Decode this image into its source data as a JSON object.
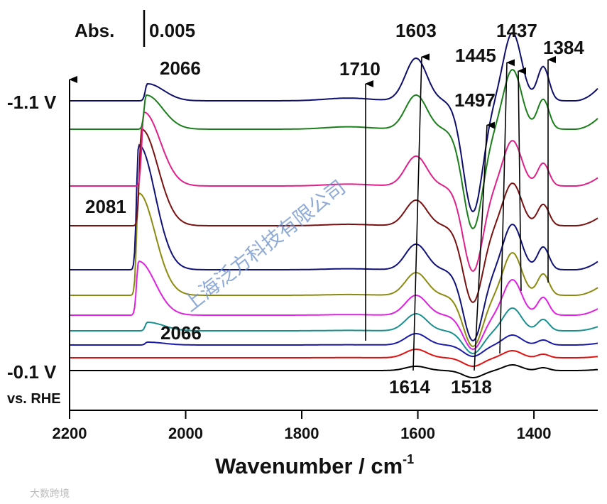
{
  "chart_data": {
    "type": "line",
    "xlabel": "Wavenumber / cm",
    "xlabel_superscript": "-1",
    "xlim": [
      2200,
      1290
    ],
    "x_ticks": [
      2200,
      2000,
      1800,
      1600,
      1400
    ],
    "scale_bar": {
      "label": "Abs.",
      "value": "0.005"
    },
    "potential_labels": {
      "top": "-1.1 V",
      "bottom": "-0.1 V",
      "reference": "vs. RHE"
    },
    "annotations": [
      "2066",
      "2081",
      "2066",
      "1710",
      "1603",
      "1445",
      "1437",
      "1384",
      "1497",
      "1614",
      "1518"
    ],
    "series": [
      {
        "color": "#000000",
        "baseline": 0.0,
        "co": 0.0,
        "co_center": 2066,
        "b1603": 0.3,
        "d1510": 0.5,
        "b1437": 0.4
      },
      {
        "color": "#e01010",
        "baseline": 0.9,
        "co": 0.0,
        "co_center": 2066,
        "b1603": 0.6,
        "d1510": 0.6,
        "b1437": 0.5
      },
      {
        "color": "#1a1aaa",
        "baseline": 1.8,
        "co": 0.2,
        "co_center": 2066,
        "b1603": 0.8,
        "d1510": 0.8,
        "b1437": 0.7
      },
      {
        "color": "#1a8f8f",
        "baseline": 2.8,
        "co": 0.6,
        "co_center": 2066,
        "b1603": 1.2,
        "d1510": 1.6,
        "b1437": 1.6
      },
      {
        "color": "#e020e0",
        "baseline": 3.9,
        "co": 3.8,
        "co_center": 2081,
        "b1603": 1.4,
        "d1510": 2.4,
        "b1437": 2.5
      },
      {
        "color": "#8b8b10",
        "baseline": 5.3,
        "co": 7.2,
        "co_center": 2081,
        "b1603": 1.6,
        "d1510": 3.6,
        "b1437": 3.0
      },
      {
        "color": "#10107a",
        "baseline": 7.1,
        "co": 8.8,
        "co_center": 2081,
        "b1603": 1.8,
        "d1510": 5.0,
        "b1437": 3.2
      },
      {
        "color": "#7a1010",
        "baseline": 10.2,
        "co": 6.8,
        "co_center": 2076,
        "b1603": 1.8,
        "d1510": 5.4,
        "b1437": 3.0
      },
      {
        "color": "#e0208a",
        "baseline": 13.0,
        "co": 5.2,
        "co_center": 2072,
        "b1603": 2.1,
        "d1510": 6.0,
        "b1437": 3.2
      },
      {
        "color": "#1a7f1a",
        "baseline": 17.0,
        "co": 2.4,
        "co_center": 2068,
        "b1603": 2.4,
        "d1510": 7.0,
        "b1437": 4.2
      },
      {
        "color": "#0d0d6e",
        "baseline": 19.0,
        "co": 1.2,
        "co_center": 2066,
        "b1603": 3.0,
        "d1510": 7.8,
        "b1437": 4.8
      }
    ]
  },
  "watermark": "上海泛方科技有限公司",
  "corner_mark": "大数跨境"
}
